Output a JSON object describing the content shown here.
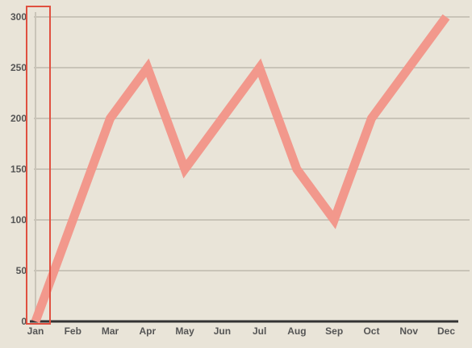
{
  "chart_data": {
    "type": "line",
    "categories": [
      "Jan",
      "Feb",
      "Mar",
      "Apr",
      "May",
      "Jun",
      "Jul",
      "Aug",
      "Sep",
      "Oct",
      "Nov",
      "Dec"
    ],
    "series": [
      {
        "values": [
          0,
          100,
          200,
          250,
          150,
          200,
          250,
          150,
          100,
          200,
          250,
          300
        ],
        "color": "#f2988c"
      }
    ],
    "title": "",
    "xlabel": "",
    "ylabel": "",
    "ylim": [
      0,
      300
    ],
    "yticks": [
      "0",
      "50",
      "100",
      "150",
      "200",
      "250",
      "300"
    ],
    "grid": true,
    "highlight": {
      "category": "Jan",
      "color": "#e05040"
    },
    "colors": {
      "background": "#e9e4d8",
      "grid": "#c9c4b8",
      "axis": "#333333"
    }
  }
}
